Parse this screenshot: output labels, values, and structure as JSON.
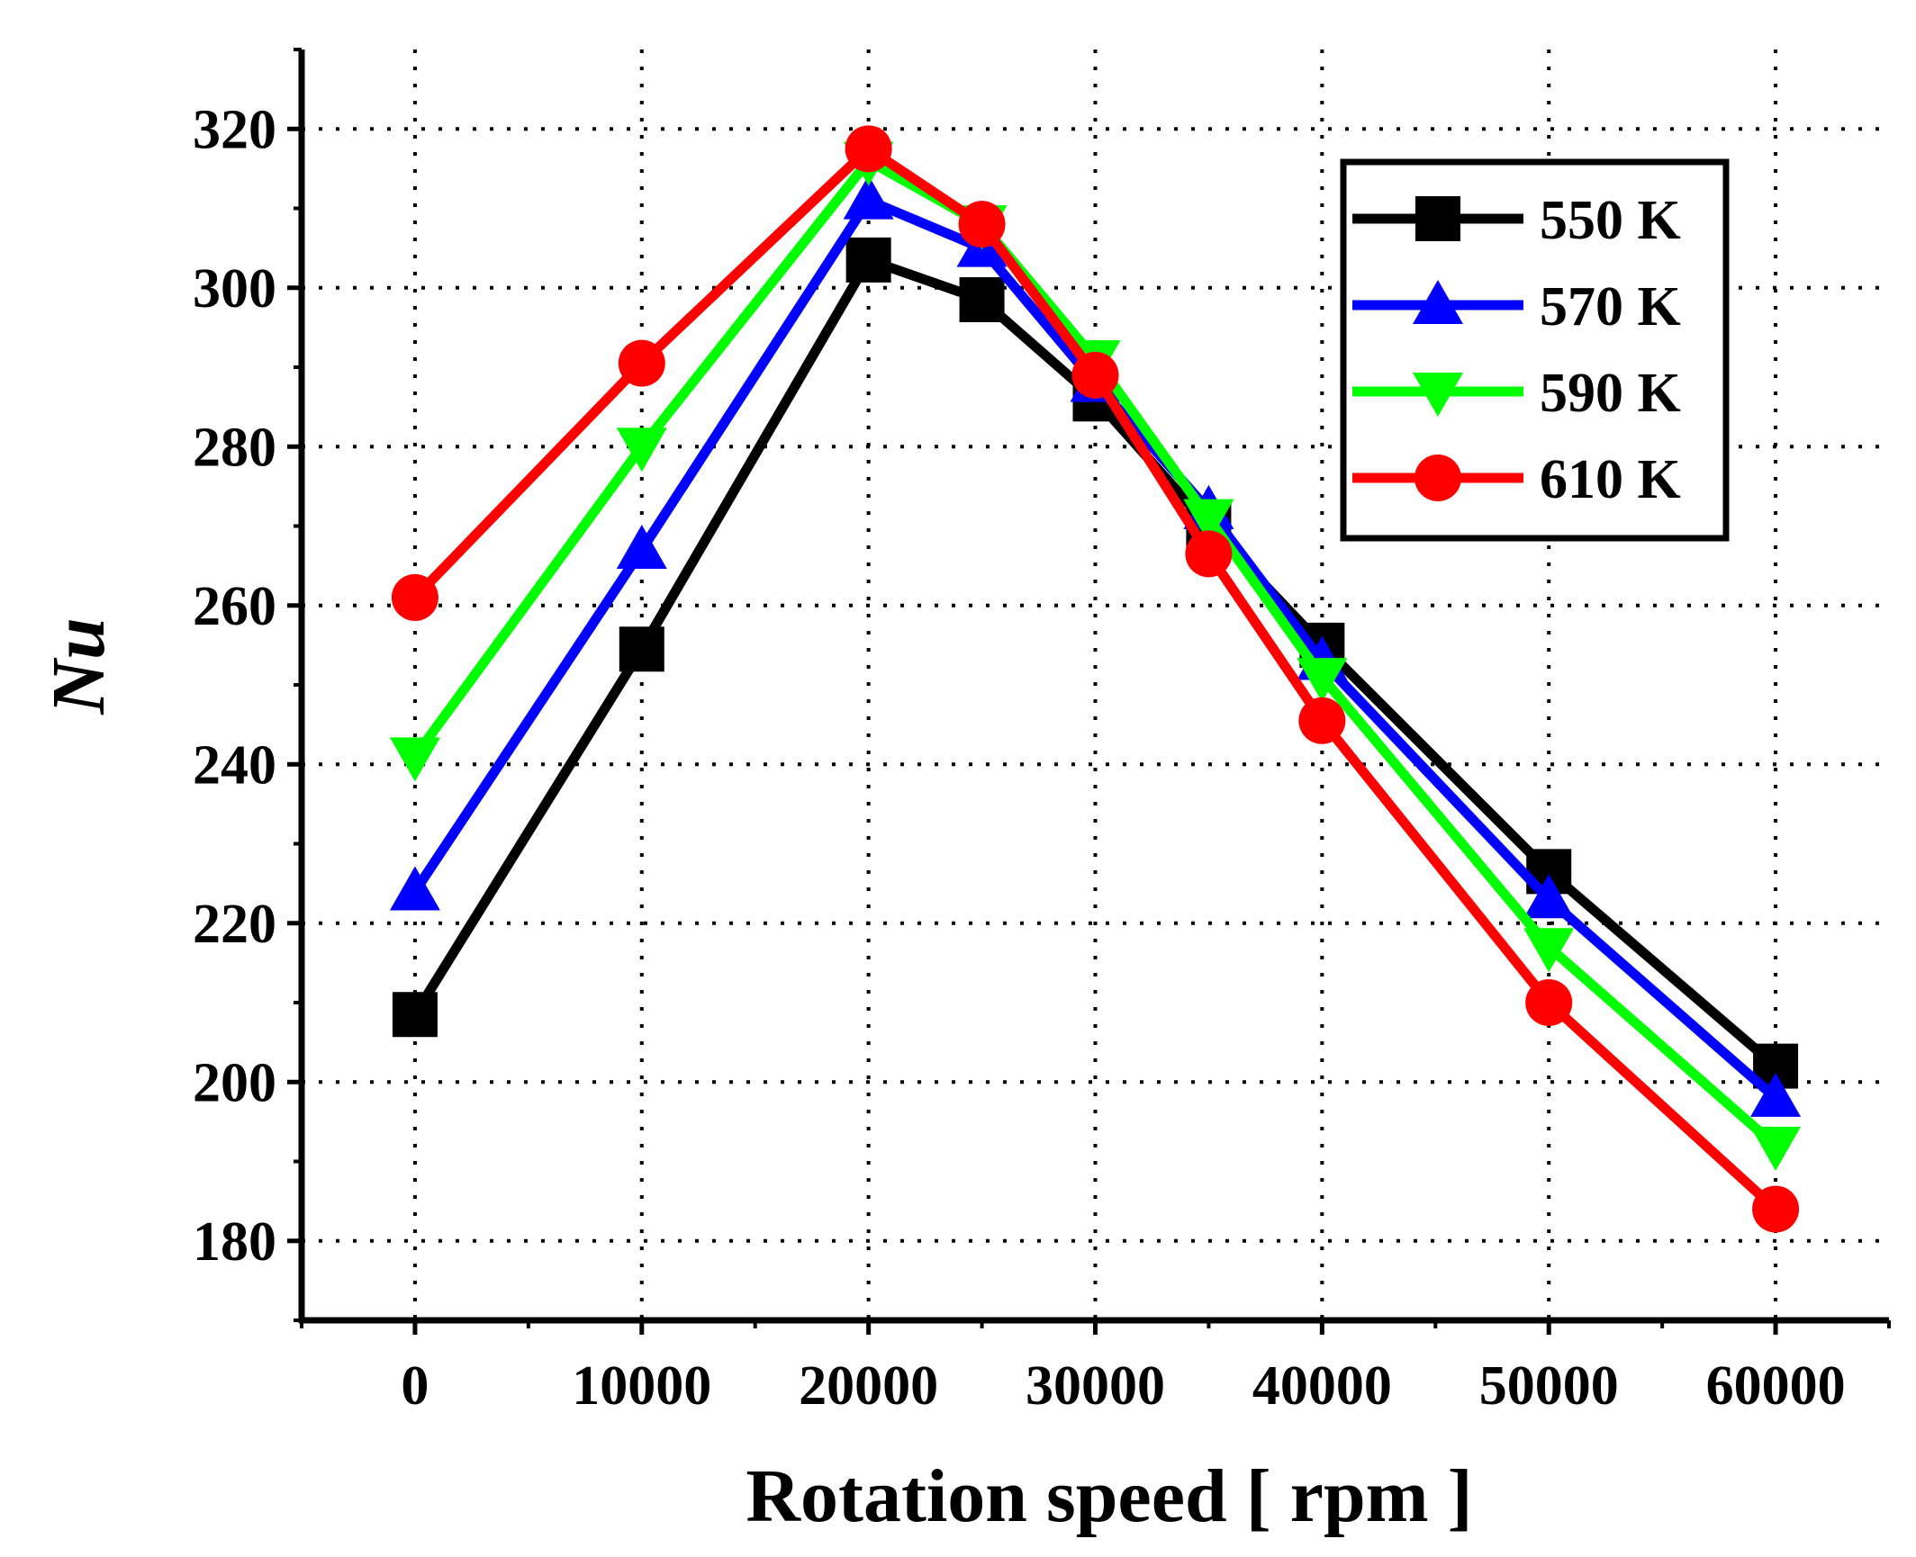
{
  "chart_data": {
    "type": "line",
    "title": "",
    "xlabel": "Rotation speed [ rpm ]",
    "ylabel": "Nu",
    "xlim": [
      -5000,
      65000
    ],
    "ylim": [
      170,
      330
    ],
    "x_ticks": [
      0,
      10000,
      20000,
      30000,
      40000,
      50000,
      60000
    ],
    "y_ticks": [
      180,
      200,
      220,
      240,
      260,
      280,
      300,
      320
    ],
    "grid": true,
    "legend_position": "top-right",
    "x": [
      0,
      10000,
      20000,
      25000,
      30000,
      35000,
      40000,
      50000,
      60000
    ],
    "series": [
      {
        "name": "550 K",
        "color": "#000000",
        "marker": "square",
        "values": [
          208.5,
          254.5,
          303.5,
          298.5,
          286,
          270,
          255,
          226.5,
          202
        ]
      },
      {
        "name": "570 K",
        "color": "#0000ff",
        "marker": "triangle-up",
        "values": [
          224,
          267,
          311,
          305,
          288,
          272,
          253,
          223,
          198
        ]
      },
      {
        "name": "590 K",
        "color": "#00ff00",
        "marker": "triangle-down",
        "values": [
          241,
          280,
          316,
          308,
          291,
          271,
          251,
          217,
          192
        ]
      },
      {
        "name": "610 K",
        "color": "#ff0000",
        "marker": "circle",
        "values": [
          261,
          290.5,
          317.5,
          308,
          289,
          266.5,
          245.5,
          210,
          184
        ]
      }
    ]
  }
}
